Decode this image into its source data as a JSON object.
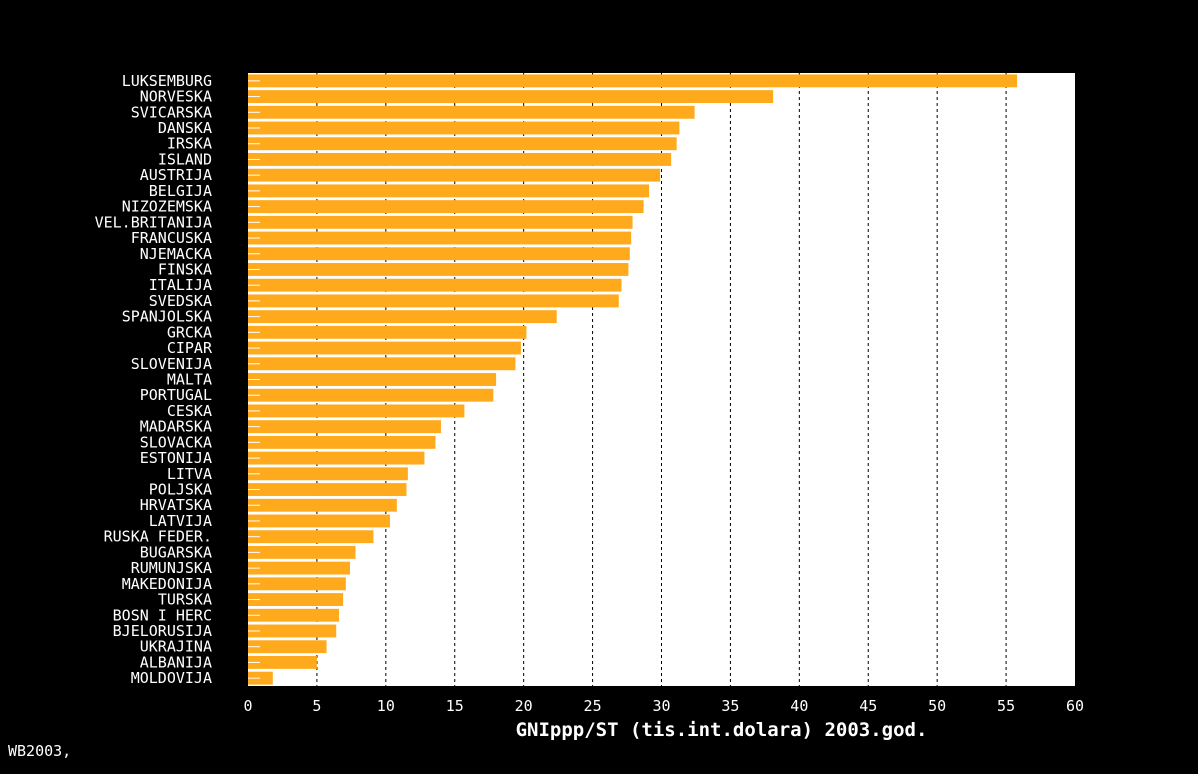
{
  "chart_data": {
    "type": "bar",
    "orientation": "horizontal",
    "categories": [
      "LUKSEMBURG",
      "NORVESKA",
      "SVICARSKA",
      "DANSKA",
      "IRSKA",
      "ISLAND",
      "AUSTRIJA",
      "BELGIJA",
      "NIZOZEMSKA",
      "VEL.BRITANIJA",
      "FRANCUSKA",
      "NJEMACKA",
      "FINSKA",
      "ITALIJA",
      "SVEDSKA",
      "SPANJOLSKA",
      "GRCKA",
      "CIPAR",
      "SLOVENIJA",
      "MALTA",
      "PORTUGAL",
      "CESKA",
      "MADARSKA",
      "SLOVACKA",
      "ESTONIJA",
      "LITVA",
      "POLJSKA",
      "HRVATSKA",
      "LATVIJA",
      "RUSKA FEDER.",
      "BUGARSKA",
      "RUMUNJSKA",
      "MAKEDONIJA",
      "TURSKA",
      "BOSN I HERC",
      "BJELORUSIJA",
      "UKRAJINA",
      "ALBANIJA",
      "MOLDOVIJA"
    ],
    "values": [
      55.8,
      38.1,
      32.4,
      31.3,
      31.1,
      30.7,
      29.9,
      29.1,
      28.7,
      27.9,
      27.8,
      27.7,
      27.6,
      27.1,
      26.9,
      22.4,
      20.2,
      19.8,
      19.4,
      18.0,
      17.8,
      15.7,
      14.0,
      13.6,
      12.8,
      11.6,
      11.5,
      10.8,
      10.3,
      9.1,
      7.8,
      7.4,
      7.1,
      6.9,
      6.6,
      6.4,
      5.7,
      5.0,
      1.8
    ],
    "title": "",
    "xlabel": "GNIppp/ST (tis.int.dolara) 2003.god.",
    "ylabel": "",
    "xlim": [
      0,
      60
    ],
    "xticks": [
      "0",
      "5",
      "10",
      "15",
      "20",
      "25",
      "30",
      "35",
      "40",
      "45",
      "50",
      "55",
      "60"
    ],
    "grid": "vertical dashed",
    "bar_color": "#FFAA1D",
    "plot_background": "#ffffff",
    "background": "#000000",
    "legend": "none"
  },
  "source_note": "WB2003,"
}
